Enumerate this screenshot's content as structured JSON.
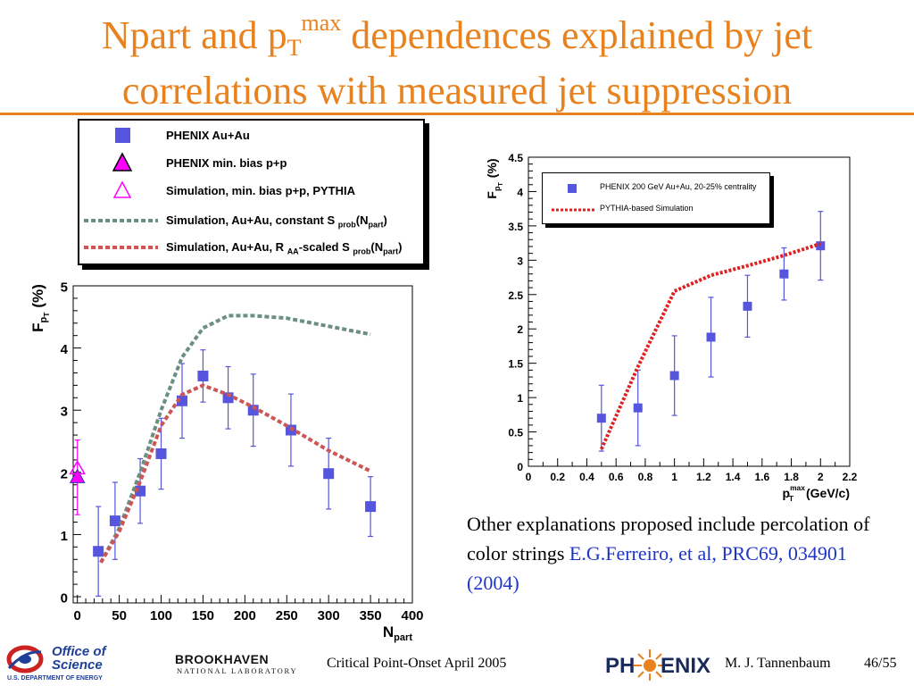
{
  "slide": {
    "title_part1": "Npart and p",
    "title_sub": "T",
    "title_sup": "max",
    "title_part2": " dependences explained by jet",
    "title_line2": "correlations with measured jet suppression",
    "accent_color": "#E8821E"
  },
  "legend_main": {
    "items": [
      {
        "label": "PHENIX Au+Au",
        "symbol": "blue-square"
      },
      {
        "label": "PHENIX min. bias p+p",
        "symbol": "magenta-filled-triangle"
      },
      {
        "label": "Simulation, min. bias p+p, PYTHIA",
        "symbol": "open-magenta-triangle"
      },
      {
        "label_a": "Simulation, Au+Au, constant S",
        "label_sub1": "prob",
        "label_b": "(N",
        "label_sub2": "part",
        "label_c": ")",
        "symbol": "gray-dashed-line"
      },
      {
        "label_a": "Simulation, Au+Au, R",
        "label_sub0": "AA",
        "label_mid": "-scaled S",
        "label_sub1": "prob",
        "label_b": "(N",
        "label_sub2": "part",
        "label_c": ")",
        "symbol": "red-dashed-line"
      }
    ]
  },
  "chart_data": [
    {
      "type": "scatter",
      "xlabel_main": "N",
      "xlabel_sub": "part",
      "ylabel_main": "F",
      "ylabel_sub": "p",
      "ylabel_subsub": "T",
      "ylabel_unit": "(%)",
      "xlim": [
        -5,
        400
      ],
      "ylim": [
        -0.1,
        5
      ],
      "xticks": [
        0,
        50,
        100,
        150,
        200,
        250,
        300,
        350,
        400
      ],
      "yticks": [
        0,
        1,
        2,
        3,
        4,
        5
      ],
      "series": [
        {
          "name": "PHENIX Au+Au",
          "color": "#5555dd",
          "marker": "square",
          "points": [
            [
              25,
              0.73,
              0.72
            ],
            [
              45,
              1.22,
              0.62
            ],
            [
              75,
              1.7,
              0.52
            ],
            [
              100,
              2.3,
              0.57
            ],
            [
              125,
              3.15,
              0.6
            ],
            [
              150,
              3.55,
              0.42
            ],
            [
              180,
              3.2,
              0.5
            ],
            [
              210,
              3.0,
              0.58
            ],
            [
              255,
              2.68,
              0.58
            ],
            [
              300,
              1.98,
              0.57
            ],
            [
              350,
              1.45,
              0.48
            ]
          ]
        },
        {
          "name": "PHENIX min. bias p+p",
          "color": "#ff00ff",
          "marker": "filled-triangle",
          "points": [
            [
              0,
              1.92,
              0.6
            ]
          ]
        },
        {
          "name": "Simulation, min. bias p+p, PYTHIA",
          "color": "#ff00ff",
          "marker": "open-triangle",
          "points": [
            [
              0,
              2.05
            ]
          ]
        },
        {
          "name": "Simulation, Au+Au, constant S prob(N part)",
          "color": "#6a8f7f",
          "style": "dashed",
          "x": [
            28,
            50,
            75,
            100,
            125,
            150,
            180,
            210,
            250,
            300,
            350
          ],
          "y": [
            0.55,
            1.1,
            2.0,
            3.0,
            3.85,
            4.32,
            4.52,
            4.52,
            4.48,
            4.35,
            4.22
          ]
        },
        {
          "name": "Simulation, Au+Au, R AA-scaled S prob(N part)",
          "color": "#cc5555",
          "style": "dashed",
          "x": [
            28,
            50,
            75,
            100,
            125,
            150,
            180,
            210,
            250,
            300,
            350
          ],
          "y": [
            0.55,
            1.05,
            1.85,
            2.75,
            3.25,
            3.4,
            3.25,
            3.05,
            2.75,
            2.35,
            2.02
          ]
        }
      ]
    },
    {
      "type": "scatter",
      "xlabel_main": "p",
      "xlabel_sub": "T",
      "xlabel_sup": "max",
      "xlabel_unit": "(GeV/c)",
      "ylabel_main": "F",
      "ylabel_sub": "p",
      "ylabel_subsub": "T",
      "ylabel_unit": "(%)",
      "xlim": [
        0,
        2.2
      ],
      "ylim": [
        0,
        4.5
      ],
      "xticks": [
        "0",
        "0.2",
        "0.4",
        "0.6",
        "0.8",
        "1",
        "1.2",
        "1.4",
        "1.6",
        "1.8",
        "2",
        "2.2"
      ],
      "yticks": [
        "0",
        "0.5",
        "1",
        "1.5",
        "2",
        "2.5",
        "3",
        "3.5",
        "4",
        "4.5"
      ],
      "series": [
        {
          "name": "PHENIX 200 GeV Au+Au, 20-25% centrality",
          "color": "#5555dd",
          "marker": "square",
          "points": [
            [
              0.5,
              0.7,
              0.48
            ],
            [
              0.75,
              0.85,
              0.55
            ],
            [
              1.0,
              1.32,
              0.58
            ],
            [
              1.25,
              1.88,
              0.58
            ],
            [
              1.5,
              2.33,
              0.45
            ],
            [
              1.75,
              2.8,
              0.38
            ],
            [
              2.0,
              3.21,
              0.5
            ]
          ]
        },
        {
          "name": "PYTHIA-based Simulation",
          "color": "#e02020",
          "style": "dotted",
          "x": [
            0.5,
            0.75,
            1.0,
            1.25,
            1.5,
            1.75,
            2.0
          ],
          "y": [
            0.25,
            1.45,
            2.55,
            2.78,
            2.92,
            3.07,
            3.24
          ]
        }
      ]
    }
  ],
  "explanation": {
    "text": "Other explanations proposed include percolation of color strings ",
    "reference": "E.G.Ferreiro, et al, PRC69, 034901 (2004)"
  },
  "footer": {
    "doe_line1": "Office of",
    "doe_line2": "Science",
    "doe_line3": "U.S. DEPARTMENT OF ENERGY",
    "bnl_line1": "BROOKHAVEN",
    "bnl_line2": "NATIONAL LABORATORY",
    "conference": "Critical Point-Onset April 2005",
    "phenix_a": "PH",
    "phenix_b": "ENIX",
    "author": "M. J. Tannenbaum",
    "page": "46/55"
  }
}
